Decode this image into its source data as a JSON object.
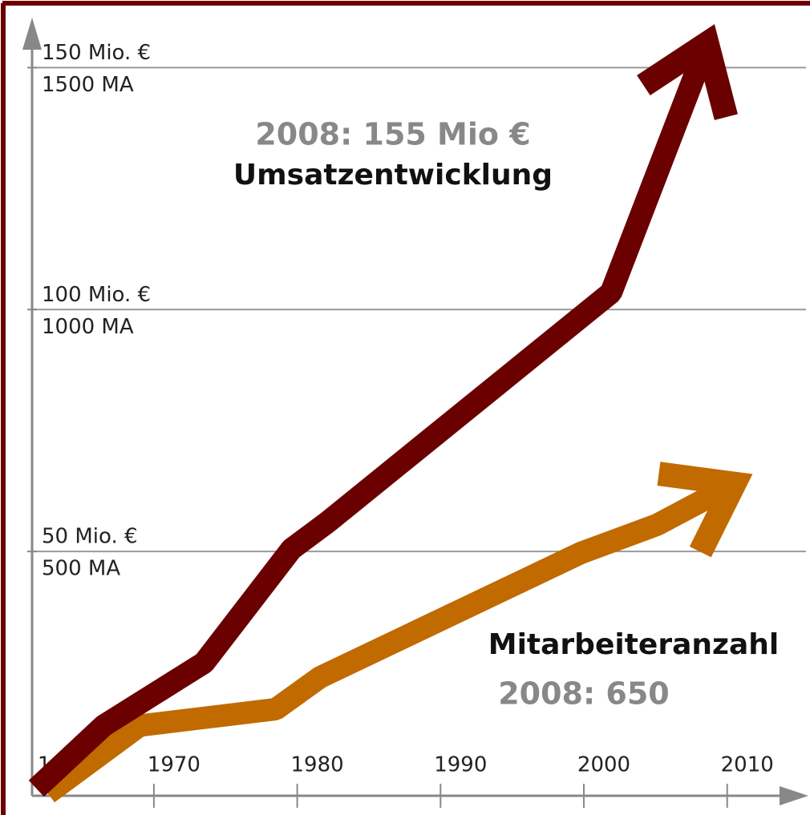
{
  "chart_data": {
    "type": "line",
    "annotations": [
      "2008: 155 Mio €",
      "Umsatzentwicklung",
      "Mitarbeiteranzahl",
      "2008: 650"
    ],
    "xlim": [
      1961.5,
      2015.5
    ],
    "xticks": [
      1960,
      1970,
      1980,
      1990,
      2000,
      2010
    ],
    "ylim": [
      0,
      160
    ],
    "yticks": [
      {
        "value": 50,
        "label": "50 Mio. €"
      },
      {
        "value": 100,
        "label": "100 Mio. €"
      },
      {
        "value": 150,
        "label": "150 Mio. €"
      }
    ],
    "y2lim": [
      0,
      1600
    ],
    "y2ticks": [
      {
        "value": 500,
        "label": "500 MA"
      },
      {
        "value": 1000,
        "label": "1000 MA"
      },
      {
        "value": 1500,
        "label": "1500 MA"
      }
    ],
    "grid": true,
    "series": [
      {
        "color": "#6b0000",
        "x": [
          1961.8,
          1966.5,
          1973.5,
          1979.6,
          1982.1,
          2001.9,
          2008.6
        ],
        "values": [
          1,
          14,
          27,
          50.5,
          56,
          103.5,
          155
        ]
      },
      {
        "color": "#c06a00",
        "axis": "y2",
        "x": [
          1962.6,
          1969,
          1978.5,
          1981.6,
          1999.8,
          2005.1,
          2010.5
        ],
        "values": [
          0,
          140,
          174,
          240,
          497,
          555,
          640
        ]
      }
    ]
  }
}
